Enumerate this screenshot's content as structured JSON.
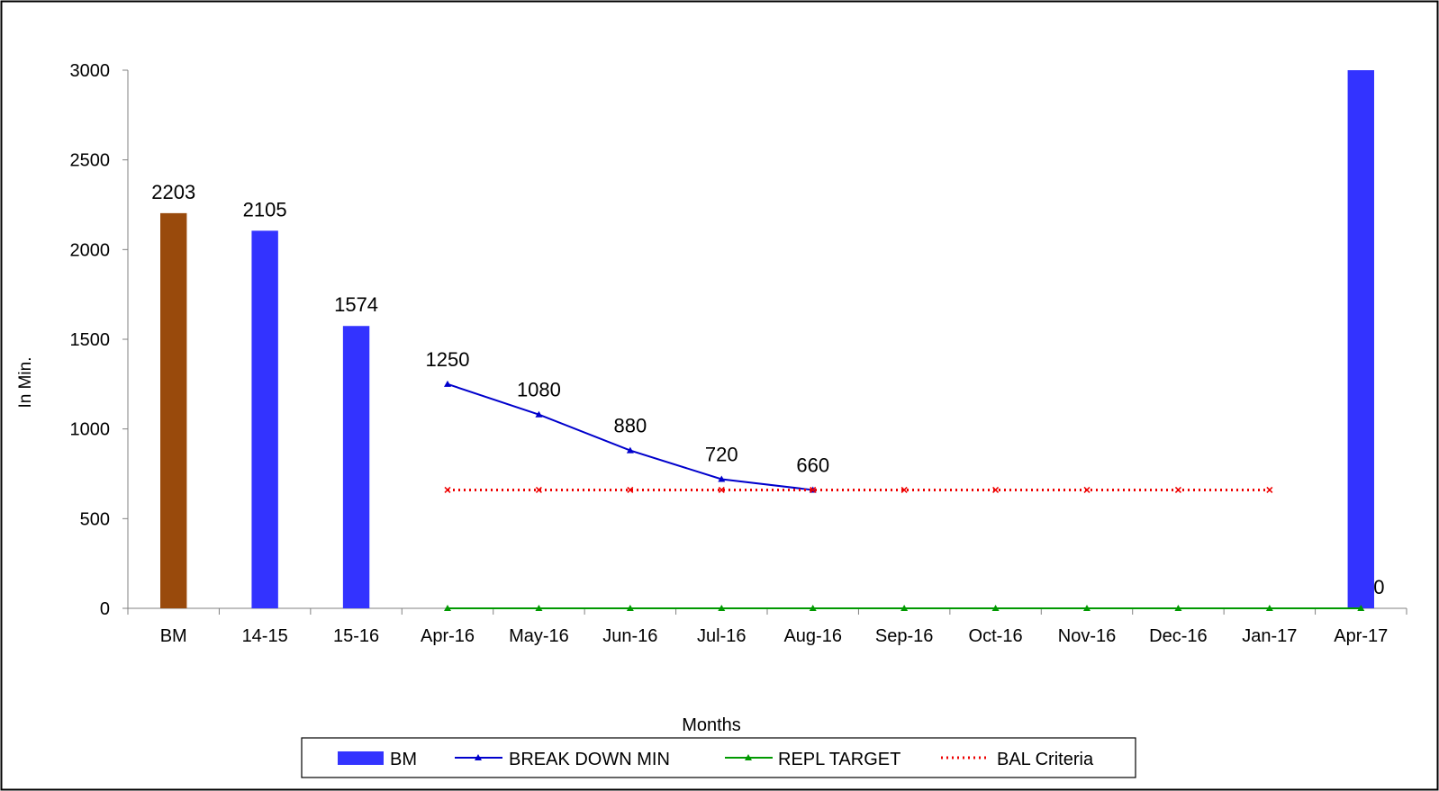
{
  "chart_data": {
    "type": "bar",
    "title": "",
    "xlabel": "Months",
    "ylabel": "In Min.",
    "ylim": [
      0,
      3000
    ],
    "yticks": [
      0,
      500,
      1000,
      1500,
      2000,
      2500,
      3000
    ],
    "grid": false,
    "legend_position": "bottom",
    "categories": [
      "BM",
      "14-15",
      "15-16",
      "Apr-16",
      "May-16",
      "Jun-16",
      "Jul-16",
      "Aug-16",
      "Sep-16",
      "Oct-16",
      "Nov-16",
      "Dec-16",
      "Jan-17",
      "Apr-17"
    ],
    "series": [
      {
        "name": "BM",
        "kind": "bar",
        "color": "#3333ff",
        "highlight_color": "#994a0c",
        "values": [
          2203,
          2105,
          1574,
          null,
          null,
          null,
          null,
          null,
          null,
          null,
          null,
          null,
          null,
          3000
        ],
        "labels": [
          "2203",
          "2105",
          "1574",
          "",
          "",
          "",
          "",
          "",
          "",
          "",
          "",
          "",
          "",
          ""
        ]
      },
      {
        "name": "BREAK DOWN MIN",
        "kind": "line",
        "color": "#0000cc",
        "marker": "triangle",
        "values": [
          null,
          null,
          null,
          1250,
          1080,
          880,
          720,
          660,
          null,
          null,
          null,
          null,
          null,
          null
        ],
        "labels": [
          "",
          "",
          "",
          "1250",
          "1080",
          "880",
          "720",
          "660",
          "",
          "",
          "",
          "",
          "",
          ""
        ]
      },
      {
        "name": "REPL TARGET",
        "kind": "line",
        "color": "#009900",
        "marker": "triangle",
        "values": [
          null,
          null,
          null,
          0,
          0,
          0,
          0,
          0,
          0,
          0,
          0,
          0,
          0,
          0
        ],
        "labels": [
          "",
          "",
          "",
          "",
          "",
          "",
          "",
          "",
          "",
          "",
          "",
          "",
          "",
          "0"
        ]
      },
      {
        "name": "BAL Criteria",
        "kind": "line",
        "style": "dotted",
        "color": "#ee0000",
        "marker": "x",
        "values": [
          null,
          null,
          null,
          660,
          660,
          660,
          660,
          660,
          660,
          660,
          660,
          660,
          660,
          null
        ],
        "labels": [
          "",
          "",
          "",
          "",
          "",
          "",
          "",
          "",
          "",
          "",
          "",
          "",
          "",
          ""
        ]
      }
    ]
  }
}
